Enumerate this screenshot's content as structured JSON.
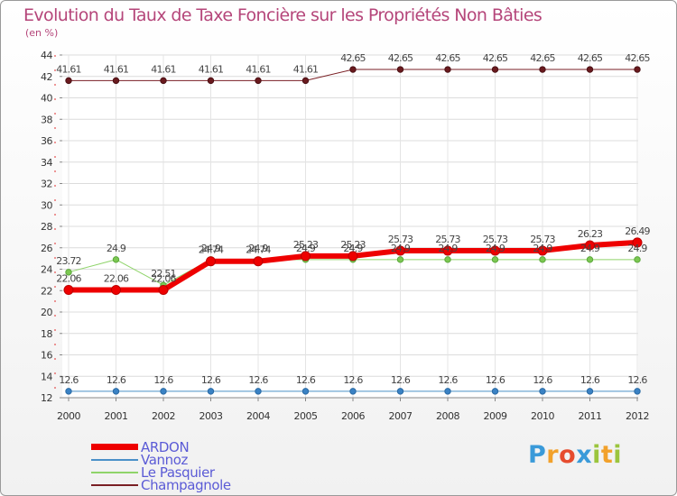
{
  "chart_data": {
    "type": "line",
    "title": "Evolution du Taux de Taxe Foncière sur les Propriétés Non Bâties",
    "ylabel": "(en %)",
    "xlabel": "",
    "categories": [
      "2000",
      "2001",
      "2002",
      "2003",
      "2004",
      "2005",
      "2006",
      "2007",
      "2008",
      "2009",
      "2010",
      "2011",
      "2012"
    ],
    "ylim": [
      12,
      44
    ],
    "yticks": [
      12,
      14,
      16,
      18,
      20,
      22,
      24,
      26,
      28,
      30,
      32,
      34,
      36,
      38,
      40,
      42,
      44
    ],
    "grid": true,
    "legend_position": "bottom-left",
    "series": [
      {
        "name": "ARDON",
        "color": "#ee0000",
        "values": [
          22.06,
          22.06,
          22.06,
          24.74,
          24.74,
          25.23,
          25.23,
          25.73,
          25.73,
          25.73,
          25.73,
          26.23,
          26.49
        ],
        "labels": [
          "22.06",
          "22.06",
          "22.06",
          "24.74",
          "24.74",
          "25.23",
          "25.23",
          "25.73",
          "25.73",
          "25.73",
          "25.73",
          "26.23",
          "26.49"
        ]
      },
      {
        "name": "Vannoz",
        "color": "#4a90c8",
        "values": [
          12.6,
          12.6,
          12.6,
          12.6,
          12.6,
          12.6,
          12.6,
          12.6,
          12.6,
          12.6,
          12.6,
          12.6,
          12.6
        ],
        "labels": [
          "12.6",
          "12.6",
          "12.6",
          "12.6",
          "12.6",
          "12.6",
          "12.6",
          "12.6",
          "12.6",
          "12.6",
          "12.6",
          "12.6",
          "12.6"
        ]
      },
      {
        "name": "Le Pasquier",
        "color": "#8fd46a",
        "values": [
          23.72,
          24.9,
          22.51,
          24.9,
          24.9,
          24.9,
          24.9,
          24.9,
          24.9,
          24.9,
          24.9,
          24.9,
          24.9
        ],
        "labels": [
          "23.72",
          "24.9",
          "22.51",
          "24.9",
          "24.9",
          "24.9",
          "24.9",
          "24.9",
          "24.9",
          "24.9",
          "24.9",
          "24.9",
          "24.9"
        ]
      },
      {
        "name": "Champagnole",
        "color": "#7a1f24",
        "values": [
          41.61,
          41.61,
          41.61,
          41.61,
          41.61,
          41.61,
          42.65,
          42.65,
          42.65,
          42.65,
          42.65,
          42.65,
          42.65
        ],
        "labels": [
          "41.61",
          "41.61",
          "41.61",
          "41.61",
          "41.61",
          "41.61",
          "42.65",
          "42.65",
          "42.65",
          "42.65",
          "42.65",
          "42.65",
          "42.65"
        ]
      }
    ]
  },
  "legend": {
    "items": [
      {
        "name": "ARDON",
        "color": "#ee0000"
      },
      {
        "name": "Vannoz",
        "color": "#4a90c8"
      },
      {
        "name": "Le Pasquier",
        "color": "#8fd46a"
      },
      {
        "name": "Champagnole",
        "color": "#7a1f24"
      }
    ]
  },
  "logo": {
    "text": "Proxiti",
    "letters": [
      "P",
      "r",
      "o",
      "x",
      "i",
      "t",
      "i"
    ],
    "colors": [
      "#3a9ad9",
      "#f2a12b",
      "#e64c2e",
      "#3a9ad9",
      "#9bc53d",
      "#f2a12b",
      "#9bc53d"
    ]
  }
}
